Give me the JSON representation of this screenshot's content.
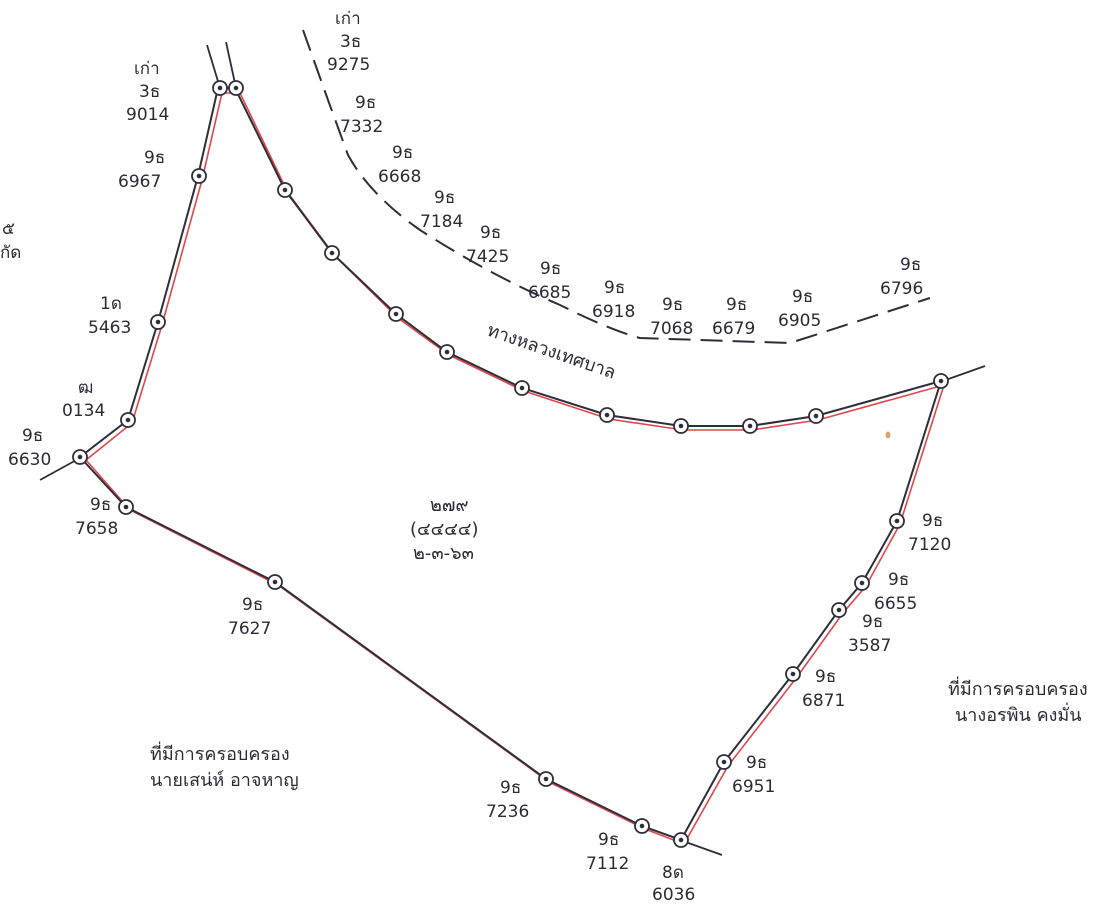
{
  "parcel": {
    "number": "๒๗๙",
    "survey_number": "(๔๔๔๔)",
    "area": "๒-๓-๖๓"
  },
  "road": {
    "name": "ทางหลวงเทศบาล"
  },
  "owners": {
    "southwest": {
      "line1": "ที่มีการครอบครอง",
      "line2": "นายเสน่ห์ อาจหาญ"
    },
    "east": {
      "line1": "ที่มีการครอบครอง",
      "line2": "นางอรพิน คงมั่น"
    }
  },
  "partial_label": {
    "line1": "๕",
    "line2": "กัด"
  },
  "markers": [
    {
      "id": "old-3t-9014",
      "lines": [
        "เก่า",
        "3ธ",
        "9014"
      ]
    },
    {
      "id": "9t-6967",
      "lines": [
        "9ธ",
        "6967"
      ]
    },
    {
      "id": "1d-5463",
      "lines": [
        "1ด",
        "5463"
      ]
    },
    {
      "id": "tm-0134",
      "lines": [
        "ฒ",
        "0134"
      ]
    },
    {
      "id": "9t-6630",
      "lines": [
        "9ธ",
        "6630"
      ]
    },
    {
      "id": "9t-7658",
      "lines": [
        "9ธ",
        "7658"
      ]
    },
    {
      "id": "9t-7627",
      "lines": [
        "9ธ",
        "7627"
      ]
    },
    {
      "id": "9t-7236",
      "lines": [
        "9ธ",
        "7236"
      ]
    },
    {
      "id": "9t-7112",
      "lines": [
        "9ธ",
        "7112"
      ]
    },
    {
      "id": "8d-6036",
      "lines": [
        "8ด",
        "6036"
      ]
    },
    {
      "id": "9t-6951",
      "lines": [
        "9ธ",
        "6951"
      ]
    },
    {
      "id": "9t-6871",
      "lines": [
        "9ธ",
        "6871"
      ]
    },
    {
      "id": "9t-3587",
      "lines": [
        "9ธ",
        "3587"
      ]
    },
    {
      "id": "9t-6655",
      "lines": [
        "9ธ",
        "6655"
      ]
    },
    {
      "id": "9t-7120",
      "lines": [
        "9ธ",
        "7120"
      ]
    },
    {
      "id": "old-3t-9275",
      "lines": [
        "เก่า",
        "3ธ",
        "9275"
      ]
    },
    {
      "id": "9t-7332",
      "lines": [
        "9ธ",
        "7332"
      ]
    },
    {
      "id": "9t-6668",
      "lines": [
        "9ธ",
        "6668"
      ]
    },
    {
      "id": "9t-7184",
      "lines": [
        "9ธ",
        "7184"
      ]
    },
    {
      "id": "9t-7425",
      "lines": [
        "9ธ",
        "7425"
      ]
    },
    {
      "id": "9t-6685",
      "lines": [
        "9ธ",
        "6685"
      ]
    },
    {
      "id": "9t-6918",
      "lines": [
        "9ธ",
        "6918"
      ]
    },
    {
      "id": "9t-7068",
      "lines": [
        "9ธ",
        "7068"
      ]
    },
    {
      "id": "9t-6679",
      "lines": [
        "9ธ",
        "6679"
      ]
    },
    {
      "id": "9t-6905",
      "lines": [
        "9ธ",
        "6905"
      ]
    },
    {
      "id": "9t-6796",
      "lines": [
        "9ธ",
        "6796"
      ]
    }
  ],
  "colors": {
    "boundary": "#2e2e3a",
    "boundary_offset": "#e0474c",
    "ink": "#2b2b38"
  }
}
